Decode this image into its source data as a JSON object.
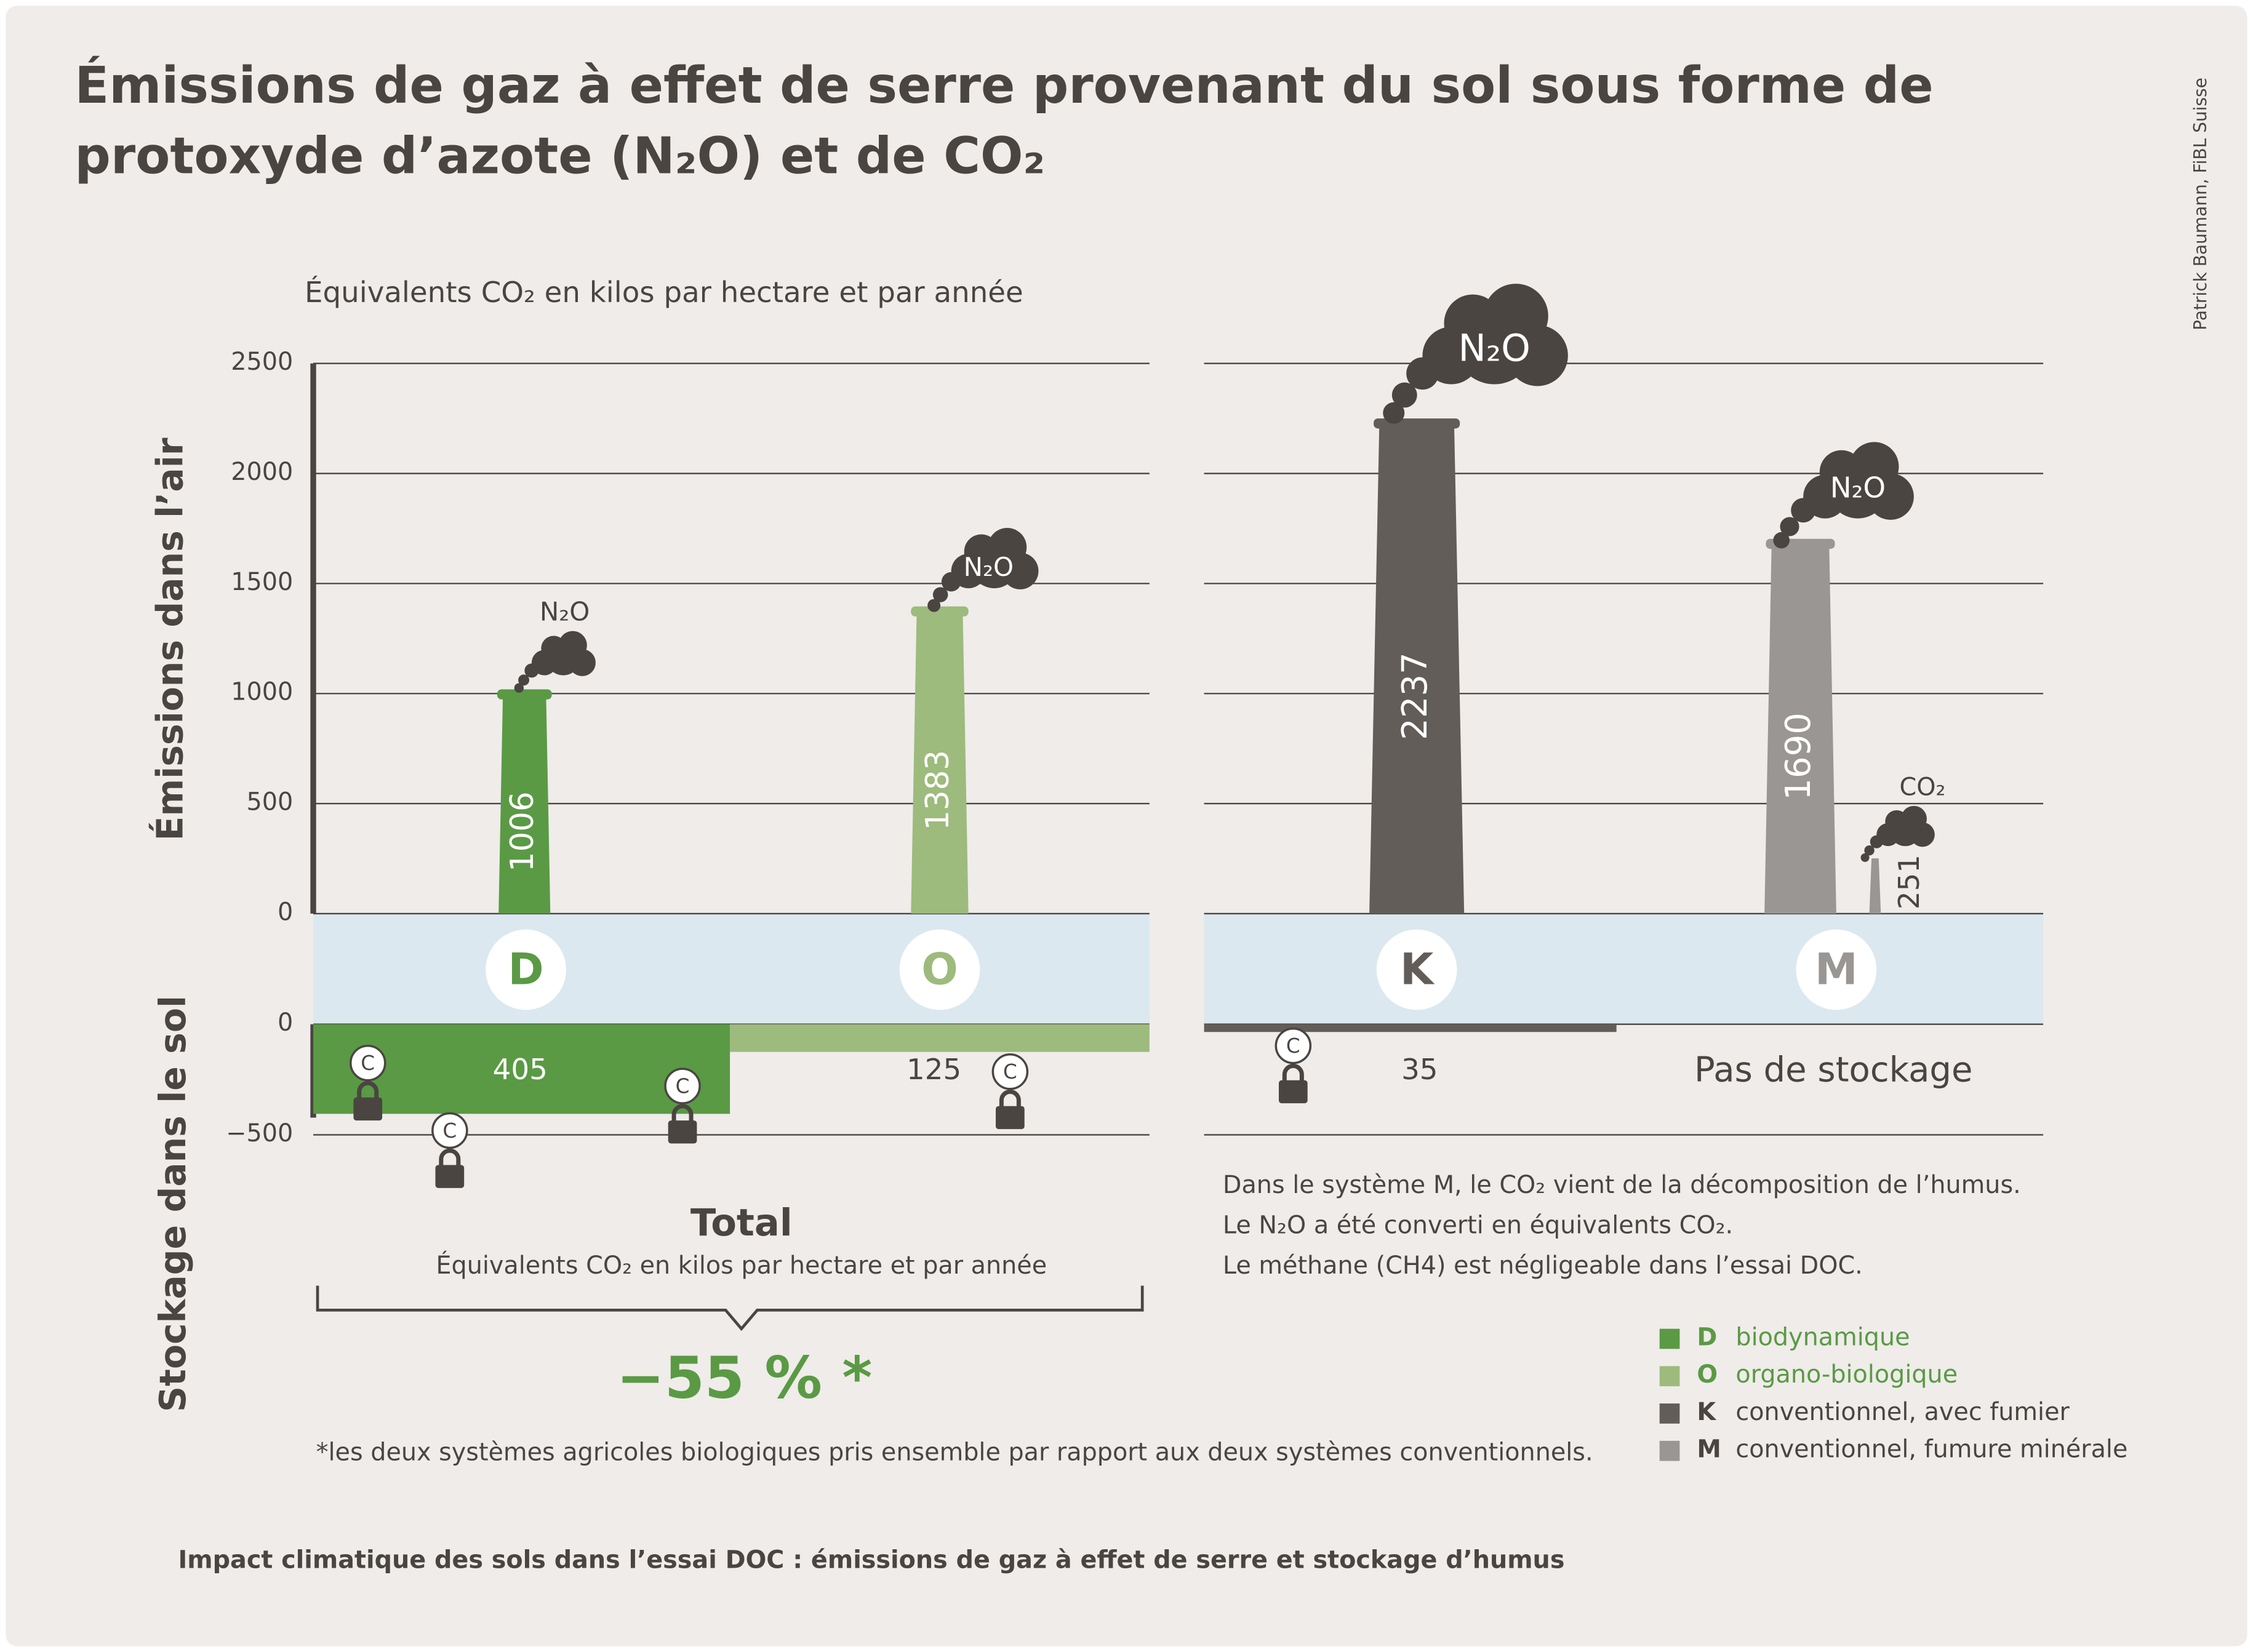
{
  "chart_data": {
    "type": "bar",
    "title": [
      "Émissions de gaz à effet de serre provenant du sol sous forme de",
      "protoxyde d’azote (N₂O) et de CO₂"
    ],
    "subtitle": "Équivalents CO₂ en kilos par hectare et par année",
    "credit": "Patrick Baumann, FiBL Suisse",
    "ylabel_top": "Émissions dans l’air",
    "ylabel_bottom": "Stockage dans le sol",
    "categories": [
      "D",
      "O",
      "K",
      "M"
    ],
    "colors": [
      "#5a9a44",
      "#9dbb7c",
      "#625d58",
      "#9a9693"
    ],
    "emissions": [
      1006,
      1383,
      2237,
      1690
    ],
    "emission_labels": [
      "N₂O",
      "N₂O",
      "N₂O",
      "N₂O"
    ],
    "co2_emissions": [
      null,
      null,
      null,
      251
    ],
    "co2_label": "CO₂",
    "storage": [
      -405,
      -125,
      -35,
      null
    ],
    "storage_labels": [
      "405",
      "125",
      "35",
      "Pas de stockage"
    ],
    "storage_icon_label": "C",
    "ylim": [
      0,
      2500
    ],
    "yticks": [
      0,
      500,
      1000,
      1500,
      2000,
      2500
    ],
    "storage_ylim": [
      -500,
      0
    ],
    "storage_yticks": [
      0,
      {
        "value": -500,
        "label": "−500"
      }
    ],
    "grid": true,
    "notes": [
      "Dans le système M, le CO₂ vient de la décomposition de l’humus.",
      "Le N₂O a été converti en équivalents CO₂.",
      "Le méthane (CH4) est négligeable dans l’essai DOC."
    ],
    "total_title": "Total",
    "total_subtitle": "Équivalents CO₂ en kilos par hectare et par année",
    "reduction": "−55 % *",
    "footnote": "*les deux systèmes agricoles biologiques pris ensemble par rapport aux deux systèmes conventionnels.",
    "legend": [
      {
        "letter": "D",
        "label": "biodynamique"
      },
      {
        "letter": "O",
        "label": "organo-biologique"
      },
      {
        "letter": "K",
        "label": "conventionnel, avec fumier"
      },
      {
        "letter": "M",
        "label": "conventionnel, fumure minérale"
      }
    ],
    "caption": "Impact climatique des sols dans l’essai DOC : émissions de gaz à effet de serre et stockage d’humus"
  }
}
